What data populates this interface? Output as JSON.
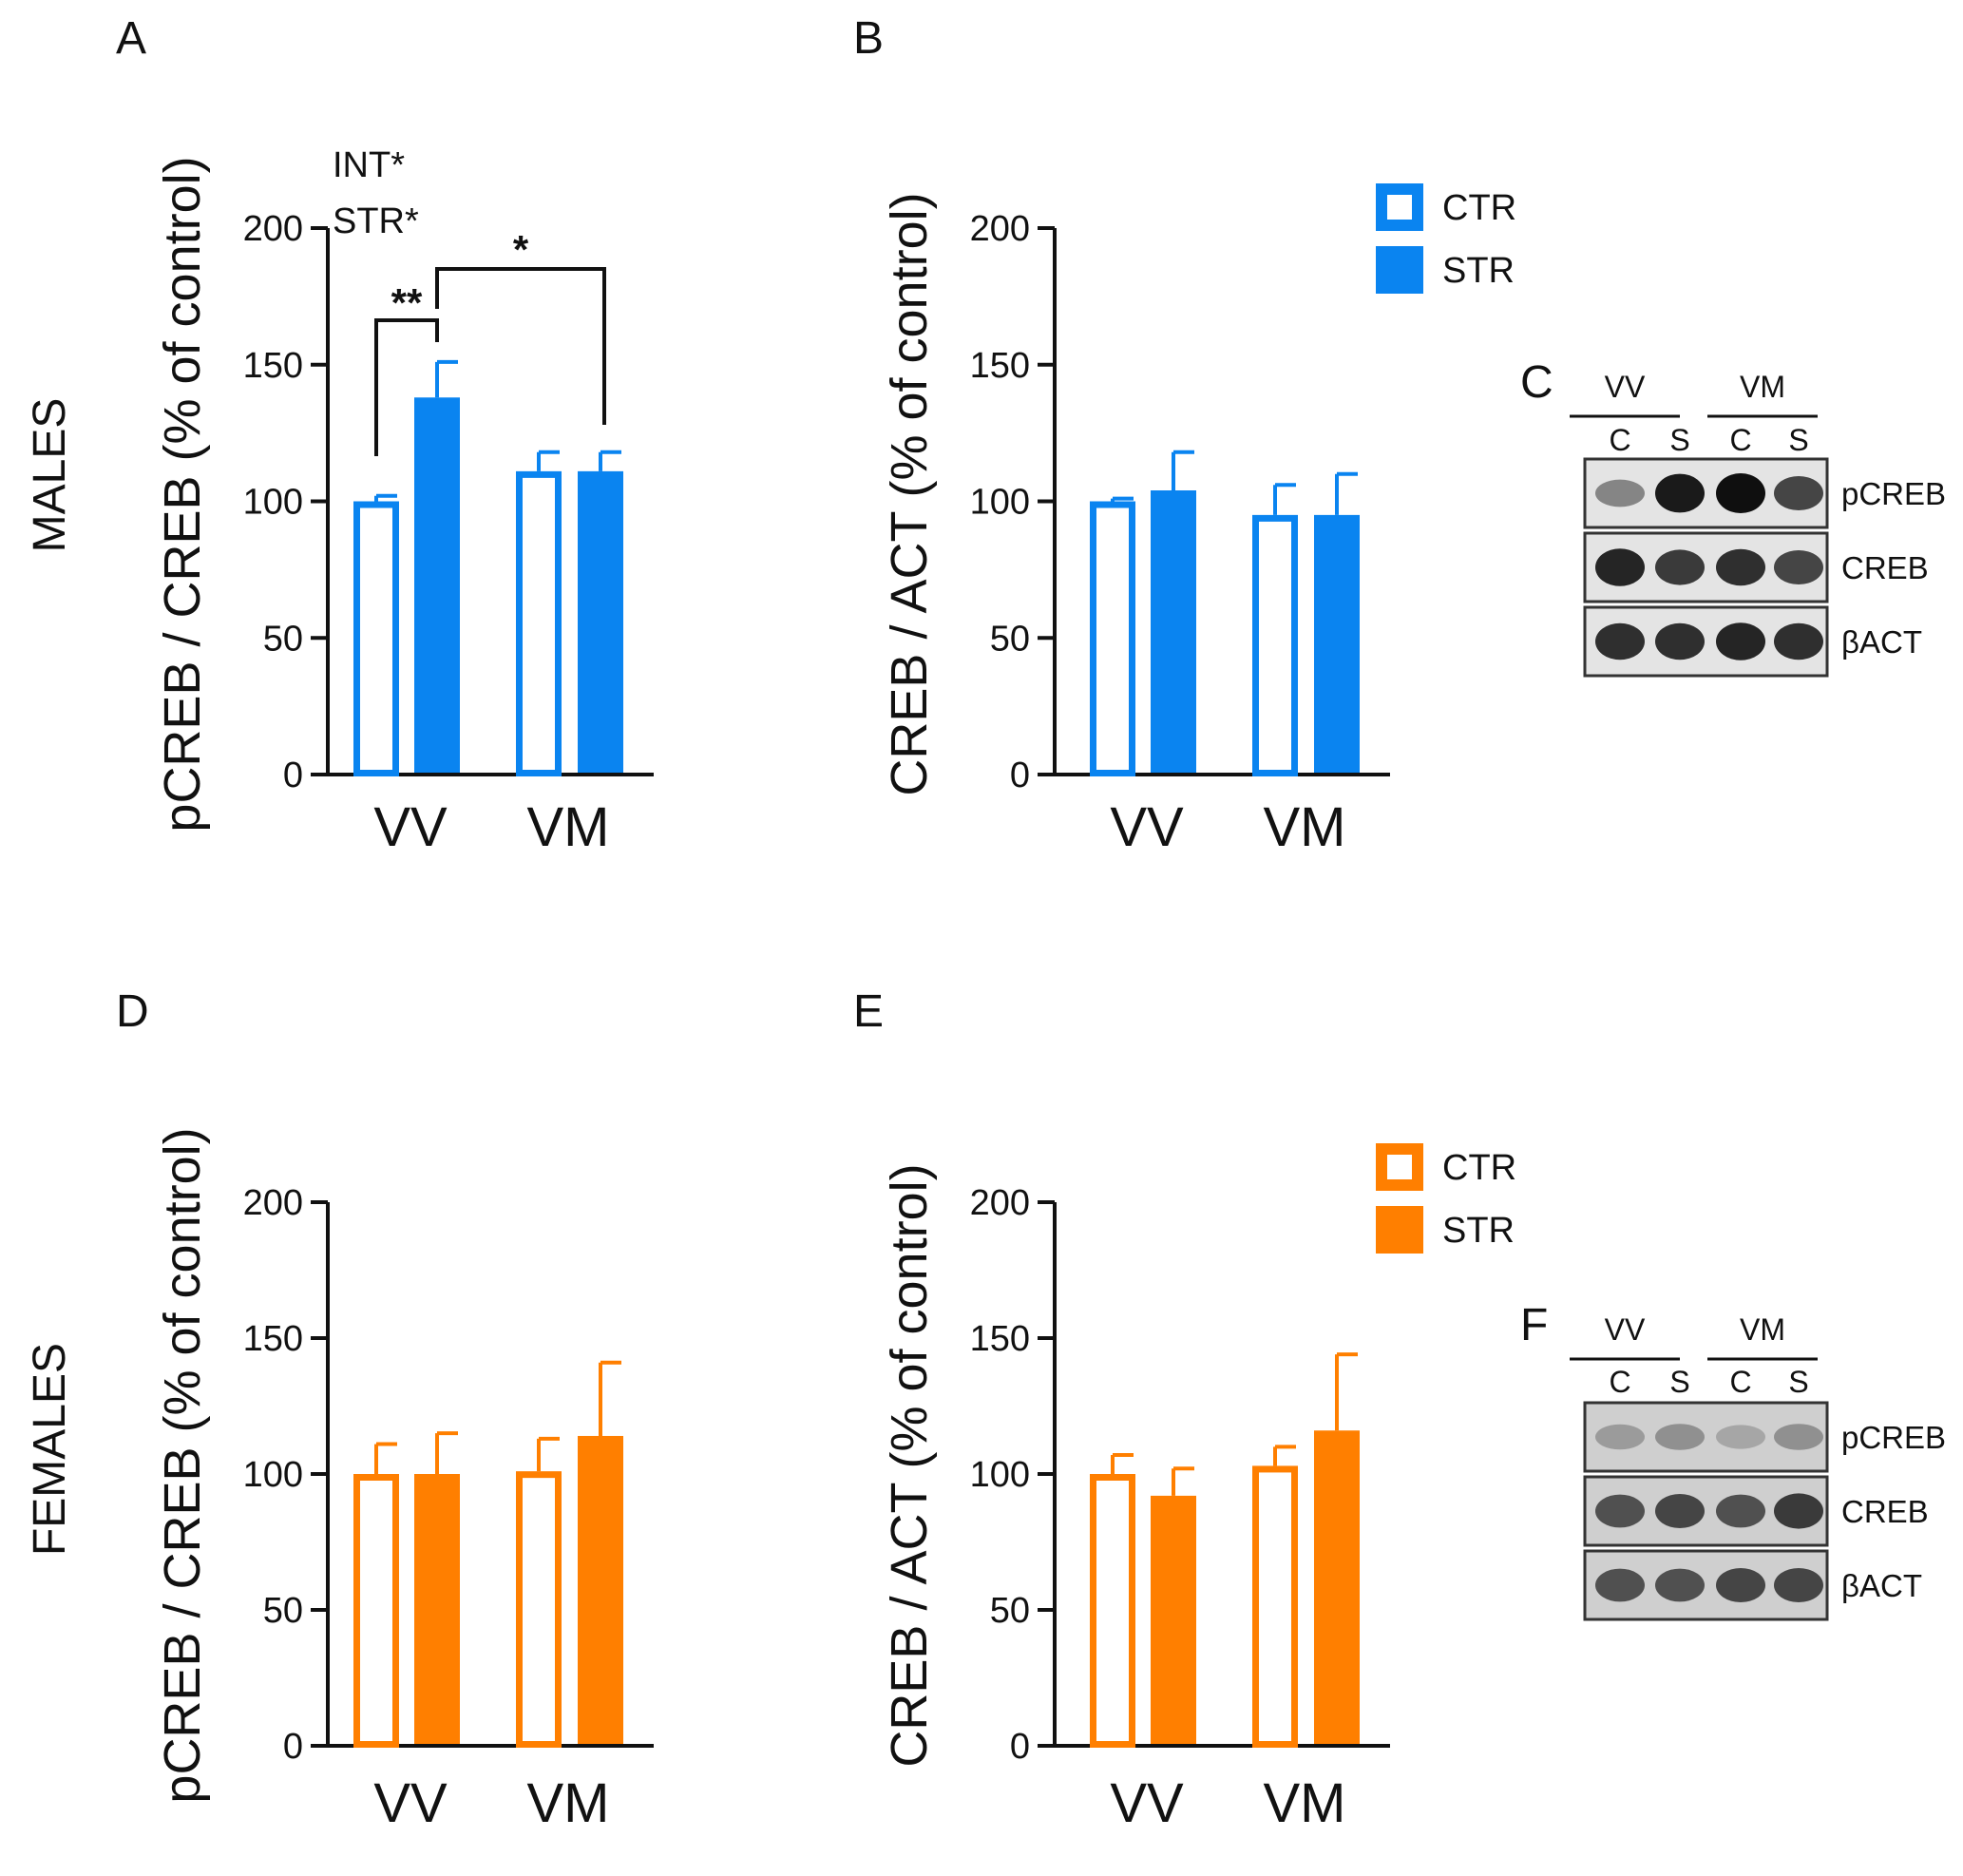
{
  "row_labels": {
    "males": "MALES",
    "females": "FEMALES"
  },
  "colors": {
    "males": "#0a84f0",
    "females": "#ff7f00",
    "axis": "#111111",
    "blot_border": "#333333"
  },
  "chart_data": [
    {
      "panel": "A",
      "type": "bar",
      "color": "#0a84f0",
      "categories": [
        "VV",
        "VM"
      ],
      "ylabel": "pCREB / CREB (% of control)",
      "ylim": [
        0,
        200
      ],
      "yticks": [
        "0",
        "50",
        "100",
        "150",
        "200"
      ],
      "series": [
        {
          "values": [
            100,
            138
          ],
          "errors": [
            2,
            13
          ]
        },
        {
          "values": [
            111,
            111
          ],
          "errors": [
            7,
            7
          ]
        }
      ],
      "legend_fill": [
        "hollow",
        "filled"
      ],
      "stats_text": [
        "INT*",
        "STR*"
      ],
      "significance": [
        {
          "label": "**",
          "from": "VV CTR",
          "to": "VV STR"
        },
        {
          "label": "*",
          "from": "VV STR",
          "to": "VM STR"
        }
      ]
    },
    {
      "panel": "B",
      "type": "bar",
      "color": "#0a84f0",
      "categories": [
        "VV",
        "VM"
      ],
      "ylabel": "CREB / ACT (% of control)",
      "ylim": [
        0,
        200
      ],
      "yticks": [
        "0",
        "50",
        "100",
        "150",
        "200"
      ],
      "series": [
        {
          "values": [
            100,
            104
          ],
          "errors": [
            1,
            14
          ]
        },
        {
          "values": [
            95,
            95
          ],
          "errors": [
            11,
            15
          ]
        }
      ],
      "legend": [
        {
          "name": "CTR",
          "fill": "hollow"
        },
        {
          "name": "STR",
          "fill": "filled"
        }
      ],
      "legend_position": "top-right"
    },
    {
      "panel": "D",
      "type": "bar",
      "color": "#ff7f00",
      "categories": [
        "VV",
        "VM"
      ],
      "ylabel": "pCREB / CREB  (% of control)",
      "ylim": [
        0,
        200
      ],
      "yticks": [
        "0",
        "50",
        "100",
        "150",
        "200"
      ],
      "series": [
        {
          "values": [
            100,
            100
          ],
          "errors": [
            11,
            15
          ]
        },
        {
          "values": [
            101,
            114
          ],
          "errors": [
            12,
            27
          ]
        }
      ]
    },
    {
      "panel": "E",
      "type": "bar",
      "color": "#ff7f00",
      "categories": [
        "VV",
        "VM"
      ],
      "ylabel": "CREB / ACT  (% of control)",
      "ylim": [
        0,
        200
      ],
      "yticks": [
        "0",
        "50",
        "100",
        "150",
        "200"
      ],
      "series": [
        {
          "values": [
            100,
            92
          ],
          "errors": [
            7,
            10
          ]
        },
        {
          "values": [
            103,
            116
          ],
          "errors": [
            7,
            28
          ]
        }
      ],
      "legend": [
        {
          "name": "CTR",
          "fill": "hollow"
        },
        {
          "name": "STR",
          "fill": "filled"
        }
      ],
      "legend_position": "top-right"
    }
  ],
  "blots": [
    {
      "panel": "C",
      "groups": [
        "VV",
        "VM"
      ],
      "lanes": [
        "C",
        "S",
        "C",
        "S"
      ],
      "rows": [
        {
          "label": "pCREB",
          "intensity": [
            0.45,
            0.95,
            1.0,
            0.75
          ]
        },
        {
          "label": "CREB",
          "intensity": [
            0.9,
            0.8,
            0.85,
            0.75
          ]
        },
        {
          "label": "βACT",
          "intensity": [
            0.85,
            0.85,
            0.9,
            0.85
          ]
        }
      ]
    },
    {
      "panel": "F",
      "groups": [
        "VV",
        "VM"
      ],
      "lanes": [
        "C",
        "S",
        "C",
        "S"
      ],
      "rows": [
        {
          "label": "pCREB",
          "intensity": [
            0.35,
            0.4,
            0.3,
            0.4
          ]
        },
        {
          "label": "CREB",
          "intensity": [
            0.7,
            0.75,
            0.7,
            0.8
          ]
        },
        {
          "label": "βACT",
          "intensity": [
            0.7,
            0.7,
            0.75,
            0.75
          ]
        }
      ]
    }
  ]
}
